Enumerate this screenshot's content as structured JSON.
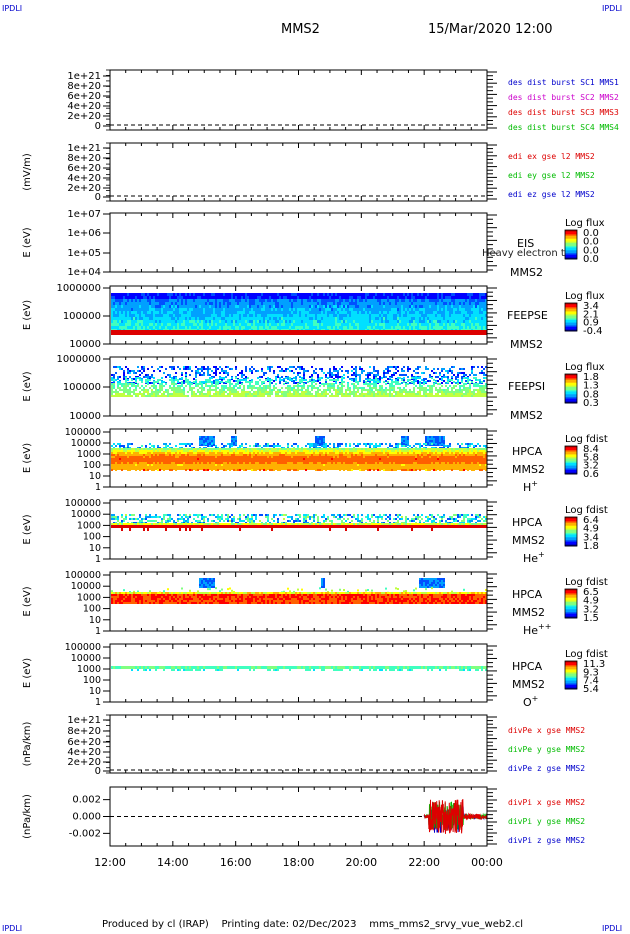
{
  "corner_label": "IPDLI",
  "header": {
    "spacecraft": "MMS2",
    "datetime": "15/Mar/2020 12:00"
  },
  "footer": "Produced by cl (IRAP)    Printing date: 02/Dec/2023    mms_mms2_srvy_vue_web2.cl",
  "colors": {
    "mms1": "#0000cc",
    "mms2": "#cc00cc",
    "mms3": "#dd0000",
    "mms4": "#00bb00",
    "x": "#dd0000",
    "y": "#00bb00",
    "z": "#0000cc"
  },
  "chart_data": [
    {
      "type": "line",
      "panel": "des_dist",
      "ylabel": "",
      "ytick_labels": [
        "1e+21",
        "8e+20",
        "6e+20",
        "4e+20",
        "2e+20",
        "0"
      ],
      "series": [
        {
          "name": "des dist burst SC1 MMS1"
        },
        {
          "name": "des dist burst SC2 MMS2"
        },
        {
          "name": "des dist burst SC3 MMS3"
        },
        {
          "name": "des dist burst SC4 MMS4"
        }
      ],
      "zero_line": "dashed"
    },
    {
      "type": "line",
      "panel": "edi",
      "ylabel": "(mV/m)",
      "ytick_labels": [
        "1e+21",
        "8e+20",
        "6e+20",
        "4e+20",
        "2e+20",
        "0"
      ],
      "series": [
        {
          "name": "edi ex gse l2 MMS2"
        },
        {
          "name": "edi ey gse l2 MMS2"
        },
        {
          "name": "edi ez gse l2 MMS2"
        }
      ],
      "zero_line": "dashed"
    },
    {
      "type": "heatmap",
      "panel": "eis",
      "ylabel": "E (eV)",
      "ytick_labels": [
        "1e+07",
        "1e+06",
        "1e+05",
        "1e+04"
      ],
      "scale": "log",
      "labels": [
        "EIS",
        "MMS2"
      ],
      "overlay_text": "Heavy electron tof",
      "colorbar_title": "Log flux",
      "colorbar_ticks": [
        "0.0",
        "0.0",
        "0.0",
        "0.0"
      ]
    },
    {
      "type": "heatmap",
      "panel": "feeps_e",
      "ylabel": "E (eV)",
      "ytick_labels": [
        "1000000",
        "100000",
        "10000"
      ],
      "scale": "log",
      "labels": [
        "FEEPSE",
        "MMS2"
      ],
      "colorbar_title": "Log flux",
      "colorbar_ticks": [
        "3.4",
        "2.1",
        "0.9",
        "-0.4"
      ]
    },
    {
      "type": "heatmap",
      "panel": "feeps_i",
      "ylabel": "E (eV)",
      "ytick_labels": [
        "1000000",
        "100000",
        "10000"
      ],
      "scale": "log",
      "labels": [
        "FEEPSI",
        "MMS2"
      ],
      "colorbar_title": "Log flux",
      "colorbar_ticks": [
        "1.8",
        "1.3",
        "0.8",
        "0.3"
      ]
    },
    {
      "type": "heatmap",
      "panel": "hpca_h",
      "ylabel": "E (eV)",
      "ytick_labels": [
        "100000",
        "10000",
        "1000",
        "100",
        "10",
        "1"
      ],
      "scale": "log",
      "labels": [
        "HPCA",
        "MMS2"
      ],
      "species": "H",
      "species_sup": "+",
      "colorbar_title": "Log fdist",
      "colorbar_ticks": [
        "8.4",
        "5.8",
        "3.2",
        "0.6"
      ]
    },
    {
      "type": "heatmap",
      "panel": "hpca_he",
      "ylabel": "E (eV)",
      "ytick_labels": [
        "100000",
        "10000",
        "1000",
        "100",
        "10",
        "1"
      ],
      "scale": "log",
      "labels": [
        "HPCA",
        "MMS2"
      ],
      "species": "He",
      "species_sup": "+",
      "colorbar_title": "Log fdist",
      "colorbar_ticks": [
        "6.4",
        "4.9",
        "3.4",
        "1.8"
      ]
    },
    {
      "type": "heatmap",
      "panel": "hpca_hepp",
      "ylabel": "E (eV)",
      "ytick_labels": [
        "100000",
        "10000",
        "1000",
        "100",
        "10",
        "1"
      ],
      "scale": "log",
      "labels": [
        "HPCA",
        "MMS2"
      ],
      "species": "He",
      "species_sup": "++",
      "colorbar_title": "Log fdist",
      "colorbar_ticks": [
        "6.5",
        "4.9",
        "3.2",
        "1.5"
      ]
    },
    {
      "type": "heatmap",
      "panel": "hpca_o",
      "ylabel": "E (eV)",
      "ytick_labels": [
        "100000",
        "10000",
        "1000",
        "100",
        "10",
        "1"
      ],
      "scale": "log",
      "labels": [
        "HPCA",
        "MMS2"
      ],
      "species": "O",
      "species_sup": "+",
      "colorbar_title": "Log fdist",
      "colorbar_ticks": [
        "11.3",
        "9.3",
        "7.4",
        "5.4"
      ]
    },
    {
      "type": "line",
      "panel": "divpe",
      "ylabel": "(nPa/km)",
      "ytick_labels": [
        "1e+21",
        "8e+20",
        "6e+20",
        "4e+20",
        "2e+20",
        "0"
      ],
      "series": [
        {
          "name": "divPe x gse MMS2"
        },
        {
          "name": "divPe y gse MMS2"
        },
        {
          "name": "divPe z gse MMS2"
        }
      ],
      "zero_line": "dashed"
    },
    {
      "type": "line",
      "panel": "divpi",
      "ylabel": "(nPa/km)",
      "ytick_labels": [
        "0.002",
        "0.000",
        "-0.002"
      ],
      "ylim": [
        -0.0035,
        0.0035
      ],
      "series": [
        {
          "name": "divPi x gse MMS2"
        },
        {
          "name": "divPi y gse MMS2"
        },
        {
          "name": "divPi z gse MMS2"
        }
      ],
      "zero_line": "dashed",
      "data_start_hour": 22.0,
      "data_end_hour": 24.0
    }
  ],
  "time_axis": {
    "labels": [
      "12:00",
      "14:00",
      "16:00",
      "18:00",
      "20:00",
      "22:00",
      "00:00"
    ],
    "hours": [
      12,
      14,
      16,
      18,
      20,
      22,
      24
    ]
  }
}
